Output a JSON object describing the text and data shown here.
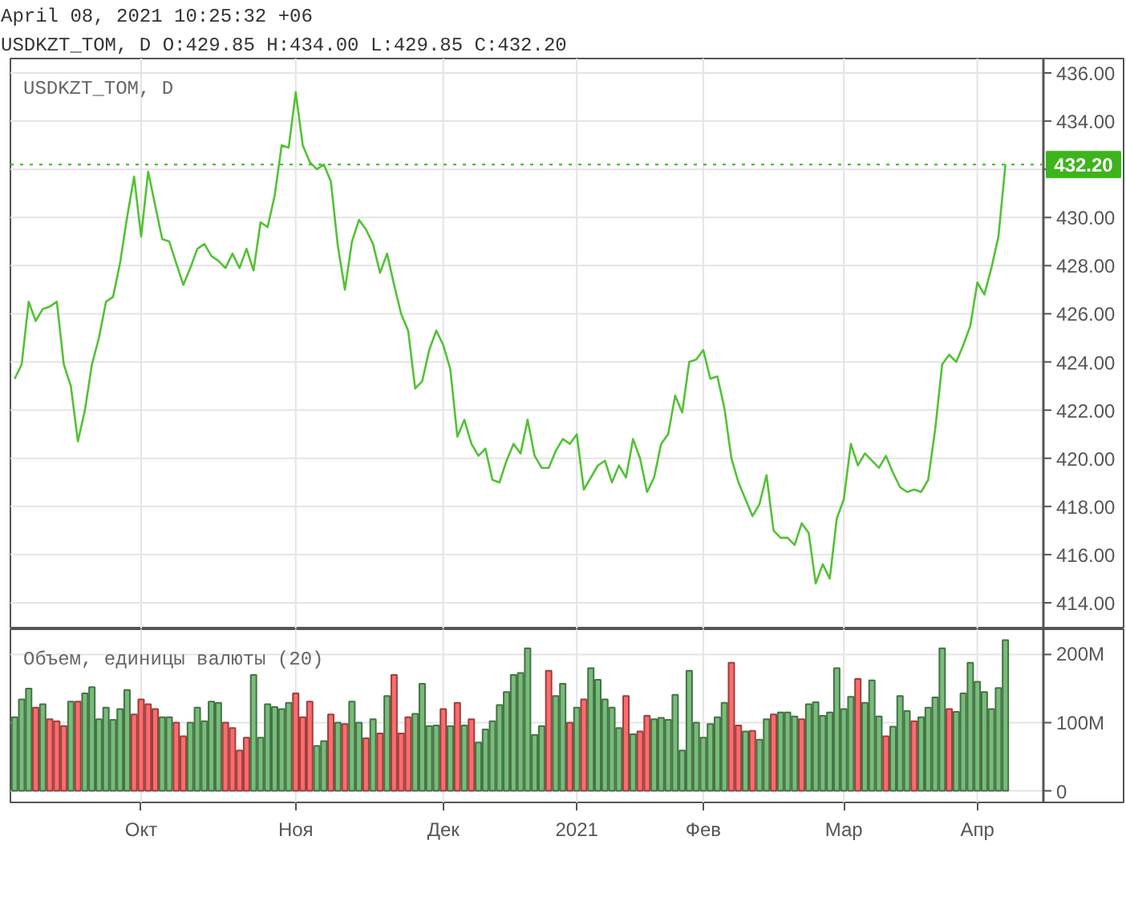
{
  "chart_data": [
    {
      "type": "line",
      "title": "USDKZT_TOM, D O:429.85 H:434.00 L:429.85 C:432.20",
      "annotations": [
        "April 08, 2021 10:25:32 +06",
        "USDKZT_TOM, D"
      ],
      "categories": [
        null,
        null,
        null,
        null,
        null,
        null,
        null,
        null,
        null,
        null,
        null,
        null,
        null,
        null,
        null,
        null,
        null,
        null,
        null,
        null,
        null,
        null,
        null,
        null,
        null,
        null,
        null,
        null,
        null,
        null,
        null,
        null,
        null,
        null,
        null,
        null,
        null,
        null,
        null,
        null,
        null,
        null,
        null,
        null,
        null,
        null,
        null,
        null,
        null,
        null,
        null,
        null,
        null,
        null,
        null,
        null,
        null,
        null,
        null,
        null,
        null,
        null,
        null,
        null,
        null,
        null,
        null,
        null,
        null,
        null,
        null,
        null,
        null,
        null,
        null,
        null,
        null,
        null,
        null,
        null,
        null,
        null,
        null,
        null,
        null,
        null,
        null,
        null,
        null,
        null,
        null,
        null,
        null,
        null,
        null,
        null,
        null,
        null,
        null,
        null,
        null,
        null,
        null,
        null,
        null,
        null,
        null,
        null,
        null,
        null,
        null,
        null,
        null,
        null,
        null,
        null,
        null,
        null,
        null,
        null,
        null,
        null,
        null,
        null,
        null,
        null,
        null,
        null,
        null,
        null,
        null,
        null,
        null,
        null,
        null,
        null,
        null,
        null,
        null,
        null,
        null,
        null
      ],
      "series": [
        {
          "color": "#52c234",
          "values": [
            423.3,
            423.9,
            426.5,
            425.7,
            426.2,
            426.3,
            426.5,
            423.9,
            423.0,
            420.7,
            422.0,
            423.9,
            425.0,
            426.5,
            426.7,
            428.1,
            430.0,
            431.7,
            429.2,
            431.9,
            430.5,
            429.1,
            429.0,
            428.1,
            427.2,
            427.9,
            428.7,
            428.9,
            428.4,
            428.2,
            427.9,
            428.5,
            427.9,
            428.7,
            427.8,
            429.8,
            429.6,
            430.9,
            433.0,
            432.9,
            435.2,
            433.0,
            432.3,
            432.0,
            432.2,
            431.5,
            428.8,
            427.0,
            429.0,
            429.9,
            429.5,
            428.9,
            427.7,
            428.5,
            427.2,
            426.0,
            425.3,
            422.9,
            423.2,
            424.5,
            425.3,
            424.7,
            423.7,
            420.9,
            421.6,
            420.6,
            420.1,
            420.4,
            419.1,
            419.0,
            419.9,
            420.6,
            420.2,
            421.6,
            420.1,
            419.6,
            419.6,
            420.3,
            420.8,
            420.6,
            421.0,
            418.7,
            419.2,
            419.7,
            419.9,
            419.0,
            419.7,
            419.2,
            420.8,
            420.0,
            418.6,
            419.2,
            420.6,
            421.0,
            422.6,
            421.9,
            424.0,
            424.1,
            424.5,
            423.3,
            423.4,
            422.1,
            420.0,
            419.0,
            418.3,
            417.6,
            418.1,
            419.3,
            417.0,
            416.7,
            416.7,
            416.4,
            417.3,
            416.9,
            414.8,
            415.6,
            415.0,
            417.5,
            418.3,
            420.6,
            419.7,
            420.2,
            419.9,
            419.6,
            420.1,
            419.4,
            418.8,
            418.6,
            418.7,
            418.6,
            419.1,
            421.2,
            423.9,
            424.3,
            424.0,
            424.7,
            425.5,
            427.3,
            426.8,
            427.9,
            429.2,
            432.2
          ]
        }
      ],
      "ylim": [
        412.9,
        436.6
      ],
      "yticks": [
        {
          "value": 414,
          "label": "414.00"
        },
        {
          "value": 416,
          "label": "416.00"
        },
        {
          "value": 418,
          "label": "418.00"
        },
        {
          "value": 420,
          "label": "420.00"
        },
        {
          "value": 422,
          "label": "422.00"
        },
        {
          "value": 424,
          "label": "424.00"
        },
        {
          "value": 426,
          "label": "426.00"
        },
        {
          "value": 428,
          "label": "428.00"
        },
        {
          "value": 430,
          "label": "430.00"
        },
        {
          "value": 432,
          "label": null
        },
        {
          "value": 434,
          "label": "434.00"
        },
        {
          "value": 436,
          "label": "436.00"
        }
      ],
      "ref_lines": [
        {
          "axis": "y",
          "value": 432.2,
          "label": "432.20",
          "color": "#3cb41c",
          "line_style": "dotted"
        }
      ],
      "grid": true,
      "tick_labels": "y",
      "line_style": "solid"
    },
    {
      "type": "bar",
      "title": "Объем, единицы валюты (20)",
      "categories": [
        null,
        null,
        null,
        null,
        null,
        null,
        null,
        null,
        null,
        null,
        null,
        null,
        null,
        null,
        null,
        null,
        null,
        null,
        "Окт",
        null,
        null,
        null,
        null,
        null,
        null,
        null,
        null,
        null,
        null,
        null,
        null,
        null,
        null,
        null,
        null,
        null,
        null,
        null,
        null,
        null,
        "Ноя",
        null,
        null,
        null,
        null,
        null,
        null,
        null,
        null,
        null,
        null,
        null,
        null,
        null,
        null,
        null,
        null,
        null,
        null,
        null,
        null,
        "Дек",
        null,
        null,
        null,
        null,
        null,
        null,
        null,
        null,
        null,
        null,
        null,
        null,
        null,
        null,
        null,
        null,
        null,
        null,
        "2021",
        null,
        null,
        null,
        null,
        null,
        null,
        null,
        null,
        null,
        null,
        null,
        null,
        null,
        null,
        null,
        null,
        null,
        "Фев",
        null,
        null,
        null,
        null,
        null,
        null,
        null,
        null,
        null,
        null,
        null,
        null,
        null,
        null,
        null,
        null,
        null,
        null,
        null,
        "Мар",
        null,
        null,
        null,
        null,
        null,
        null,
        null,
        null,
        null,
        null,
        null,
        null,
        null,
        null,
        null,
        null,
        null,
        null,
        "Апр",
        null,
        null,
        null,
        null
      ],
      "values": [
        108,
        134,
        150,
        122,
        127,
        105,
        102,
        95,
        131,
        131,
        143,
        152,
        105,
        122,
        104,
        120,
        148,
        112,
        134,
        127,
        120,
        108,
        108,
        100,
        80,
        100,
        122,
        102,
        131,
        129,
        100,
        92,
        59,
        78,
        170,
        78,
        127,
        123,
        120,
        129,
        143,
        108,
        131,
        66,
        73,
        112,
        100,
        98,
        131,
        100,
        77,
        105,
        84,
        139,
        170,
        84,
        108,
        113,
        157,
        95,
        96,
        120,
        95,
        129,
        96,
        105,
        71,
        90,
        102,
        126,
        145,
        170,
        173,
        209,
        82,
        95,
        176,
        139,
        157,
        100,
        122,
        134,
        180,
        163,
        134,
        122,
        92,
        139,
        83,
        87,
        110,
        105,
        107,
        104,
        141,
        59,
        176,
        100,
        78,
        98,
        108,
        129,
        188,
        96,
        87,
        88,
        75,
        105,
        112,
        115,
        115,
        109,
        105,
        127,
        130,
        110,
        115,
        180,
        120,
        138,
        164,
        129,
        162,
        109,
        80,
        94,
        139,
        117,
        102,
        108,
        122,
        137,
        209,
        120,
        116,
        143,
        188,
        160,
        145,
        120,
        151,
        221
      ],
      "colors": [
        "#76bd78",
        "#76bd78",
        "#76bd78",
        "#ff6b6b",
        "#76bd78",
        "#ff6b6b",
        "#ff6b6b",
        "#ff6b6b",
        "#76bd78",
        "#ff6b6b",
        "#76bd78",
        "#76bd78",
        "#76bd78",
        "#76bd78",
        "#76bd78",
        "#76bd78",
        "#76bd78",
        "#ff6b6b",
        "#ff6b6b",
        "#ff6b6b",
        "#ff6b6b",
        "#76bd78",
        "#76bd78",
        "#ff6b6b",
        "#ff6b6b",
        "#76bd78",
        "#76bd78",
        "#76bd78",
        "#76bd78",
        "#76bd78",
        "#ff6b6b",
        "#ff6b6b",
        "#ff6b6b",
        "#ff6b6b",
        "#76bd78",
        "#76bd78",
        "#76bd78",
        "#76bd78",
        "#76bd78",
        "#76bd78",
        "#ff6b6b",
        "#ff6b6b",
        "#ff6b6b",
        "#76bd78",
        "#76bd78",
        "#ff6b6b",
        "#76bd78",
        "#ff6b6b",
        "#76bd78",
        "#76bd78",
        "#ff6b6b",
        "#76bd78",
        "#ff6b6b",
        "#76bd78",
        "#ff6b6b",
        "#ff6b6b",
        "#ff6b6b",
        "#76bd78",
        "#76bd78",
        "#76bd78",
        "#76bd78",
        "#ff6b6b",
        "#76bd78",
        "#ff6b6b",
        "#76bd78",
        "#ff6b6b",
        "#76bd78",
        "#76bd78",
        "#76bd78",
        "#76bd78",
        "#76bd78",
        "#76bd78",
        "#76bd78",
        "#76bd78",
        "#76bd78",
        "#76bd78",
        "#ff6b6b",
        "#76bd78",
        "#76bd78",
        "#ff6b6b",
        "#76bd78",
        "#ff6b6b",
        "#76bd78",
        "#76bd78",
        "#76bd78",
        "#76bd78",
        "#76bd78",
        "#ff6b6b",
        "#76bd78",
        "#ff6b6b",
        "#ff6b6b",
        "#76bd78",
        "#76bd78",
        "#76bd78",
        "#76bd78",
        "#76bd78",
        "#76bd78",
        "#76bd78",
        "#76bd78",
        "#76bd78",
        "#76bd78",
        "#76bd78",
        "#ff6b6b",
        "#ff6b6b",
        "#76bd78",
        "#ff6b6b",
        "#76bd78",
        "#76bd78",
        "#ff6b6b",
        "#76bd78",
        "#76bd78",
        "#76bd78",
        "#ff6b6b",
        "#76bd78",
        "#76bd78",
        "#76bd78",
        "#76bd78",
        "#76bd78",
        "#76bd78",
        "#76bd78",
        "#ff6b6b",
        "#76bd78",
        "#76bd78",
        "#76bd78",
        "#ff6b6b",
        "#76bd78",
        "#76bd78",
        "#76bd78",
        "#ff6b6b",
        "#76bd78",
        "#76bd78",
        "#76bd78",
        "#76bd78",
        "#ff6b6b",
        "#76bd78",
        "#76bd78",
        "#76bd78",
        "#76bd78",
        "#76bd78",
        "#76bd78",
        "#76bd78",
        "#76bd78"
      ],
      "ylim": [
        -17,
        237
      ],
      "yticks": [
        0,
        {
          "value": 100,
          "label": "100M"
        },
        {
          "value": 200,
          "label": "200M"
        }
      ],
      "grid": true
    }
  ]
}
